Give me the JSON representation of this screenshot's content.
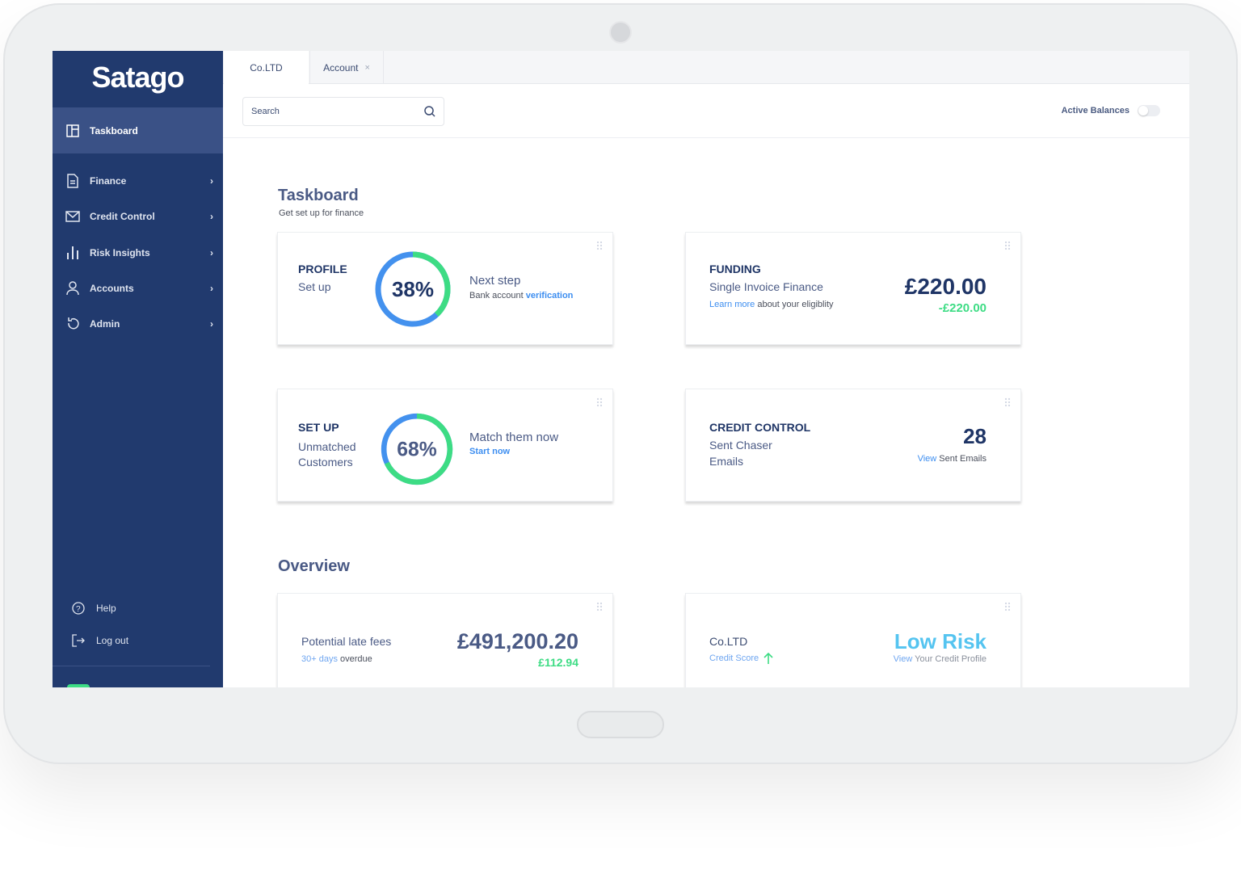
{
  "brand": {
    "logo": "Satago",
    "accent": "#213a6e",
    "green": "#3ddc84",
    "blue": "#3d8ef0"
  },
  "sidebar": {
    "items": [
      {
        "label": "Taskboard",
        "icon": "layout-icon",
        "active": true
      },
      {
        "label": "Finance",
        "icon": "document-icon"
      },
      {
        "label": "Credit Control",
        "icon": "mail-icon"
      },
      {
        "label": "Risk Insights",
        "icon": "bar-chart-icon"
      },
      {
        "label": "Accounts",
        "icon": "user-icon"
      },
      {
        "label": "Admin",
        "icon": "refresh-icon"
      }
    ],
    "footer": [
      {
        "label": "Help",
        "icon": "help-icon"
      },
      {
        "label": "Log out",
        "icon": "logout-icon"
      }
    ]
  },
  "tabs": [
    {
      "label": "Co.LTD"
    },
    {
      "label": "Account",
      "close": "×"
    }
  ],
  "search": {
    "placeholder": "Search"
  },
  "active_balances": {
    "label": "Active Balances",
    "on": false
  },
  "taskboard": {
    "title": "Taskboard",
    "subtitle": "Get set up for finance",
    "profile": {
      "title": "PROFILE",
      "subtitle": "Set up",
      "percent": 38,
      "percent_label": "38%",
      "next": "Next step",
      "detail": "Bank account",
      "link": "verification"
    },
    "funding": {
      "title": "FUNDING",
      "subtitle": "Single Invoice Finance",
      "link": "Learn more",
      "detail": "about your eligiblity",
      "amount": "£220.00",
      "delta": "-£220.00"
    },
    "setup": {
      "title": "SET UP",
      "subtitle_1": "Unmatched",
      "subtitle_2": "Customers",
      "percent": 68,
      "percent_label": "68%",
      "next": "Match them now",
      "link": "Start now"
    },
    "credit_control": {
      "title": "CREDIT CONTROL",
      "subtitle_1": "Sent Chaser",
      "subtitle_2": "Emails",
      "count": "28",
      "link": "View",
      "detail": "Sent Emails"
    }
  },
  "overview": {
    "title": "Overview",
    "late_fees": {
      "label": "Potential late fees",
      "link": "30+ days",
      "detail": "overdue",
      "amount": "£491,200.20",
      "delta": "£112.94"
    },
    "credit": {
      "company": "Co.LTD",
      "link": "Credit Score",
      "trend": "up",
      "risk": "Low Risk",
      "profile_link": "View",
      "profile_detail": "Your Credit Profile"
    }
  }
}
